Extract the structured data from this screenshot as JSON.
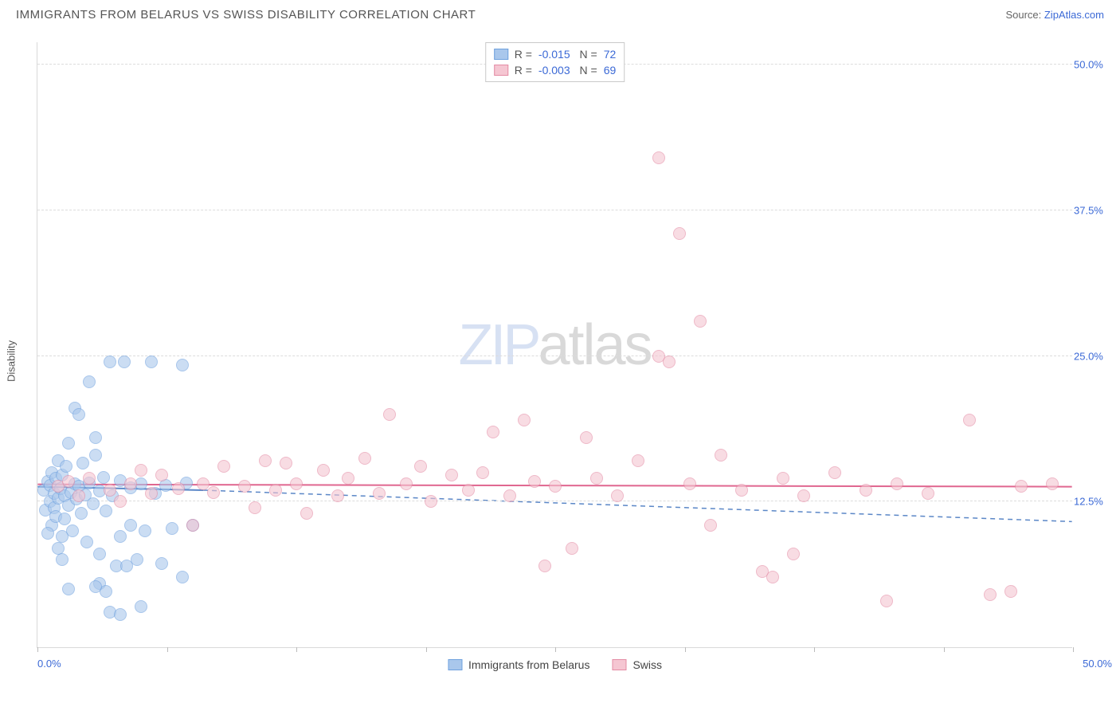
{
  "header": {
    "title": "IMMIGRANTS FROM BELARUS VS SWISS DISABILITY CORRELATION CHART",
    "source_prefix": "Source: ",
    "source_link": "ZipAtlas.com"
  },
  "chart": {
    "type": "scatter",
    "y_axis_label": "Disability",
    "xlim": [
      0,
      50
    ],
    "ylim": [
      0,
      52
    ],
    "x_ticks": [
      0,
      6.25,
      12.5,
      18.75,
      25,
      31.25,
      37.5,
      43.75,
      50
    ],
    "x_tick_labels": {
      "0": "0.0%",
      "50": "50.0%"
    },
    "y_gridlines": [
      12.5,
      25.0,
      37.5,
      50.0
    ],
    "y_tick_labels": {
      "12.5": "12.5%",
      "25.0": "25.0%",
      "37.5": "37.5%",
      "50.0": "50.0%"
    },
    "grid_color": "#dcdcdc",
    "axis_color": "#d9d9d9",
    "background_color": "#ffffff",
    "marker_radius": 8,
    "marker_opacity": 0.6,
    "watermark": {
      "part1": "ZIP",
      "part2": "atlas"
    },
    "series": [
      {
        "name": "Immigrants from Belarus",
        "fill": "#a9c7ec",
        "stroke": "#6fa1de",
        "R": "-0.015",
        "N": "72",
        "trend": {
          "y1": 13.8,
          "y2": 10.8,
          "x_end": 8,
          "dash": "6,5",
          "color": "#5b87c7",
          "width": 1.5
        },
        "trend_solid": {
          "y1": 13.8,
          "y2": 13.5,
          "x_end": 8,
          "color": "#5b87c7",
          "width": 2
        },
        "points": [
          [
            0.3,
            13.5
          ],
          [
            0.4,
            11.8
          ],
          [
            0.5,
            14.2
          ],
          [
            0.6,
            12.5
          ],
          [
            0.6,
            13.9
          ],
          [
            0.7,
            10.5
          ],
          [
            0.7,
            15.0
          ],
          [
            0.8,
            12.0
          ],
          [
            0.8,
            13.2
          ],
          [
            0.9,
            14.5
          ],
          [
            0.9,
            11.2
          ],
          [
            1.0,
            16.0
          ],
          [
            1.0,
            12.8
          ],
          [
            1.1,
            13.6
          ],
          [
            1.2,
            9.5
          ],
          [
            1.2,
            14.8
          ],
          [
            1.3,
            11.0
          ],
          [
            1.3,
            13.0
          ],
          [
            1.4,
            15.5
          ],
          [
            1.5,
            12.2
          ],
          [
            1.5,
            17.5
          ],
          [
            1.6,
            13.3
          ],
          [
            1.7,
            10.0
          ],
          [
            1.8,
            14.0
          ],
          [
            1.8,
            20.5
          ],
          [
            1.9,
            12.7
          ],
          [
            2.0,
            20.0
          ],
          [
            2.0,
            13.8
          ],
          [
            2.1,
            11.5
          ],
          [
            2.2,
            15.8
          ],
          [
            2.3,
            13.1
          ],
          [
            2.4,
            9.0
          ],
          [
            2.5,
            22.8
          ],
          [
            2.5,
            14.1
          ],
          [
            2.7,
            12.3
          ],
          [
            2.8,
            16.5
          ],
          [
            2.8,
            18.0
          ],
          [
            3.0,
            13.4
          ],
          [
            3.0,
            8.0
          ],
          [
            3.2,
            14.6
          ],
          [
            3.3,
            11.7
          ],
          [
            3.5,
            24.5
          ],
          [
            3.5,
            3.0
          ],
          [
            3.6,
            13.0
          ],
          [
            3.8,
            7.0
          ],
          [
            4.0,
            14.3
          ],
          [
            4.0,
            9.5
          ],
          [
            4.2,
            24.5
          ],
          [
            4.3,
            7.0
          ],
          [
            4.5,
            13.7
          ],
          [
            4.5,
            10.5
          ],
          [
            4.8,
            7.5
          ],
          [
            5.0,
            14.0
          ],
          [
            5.0,
            3.5
          ],
          [
            5.2,
            10.0
          ],
          [
            5.5,
            24.5
          ],
          [
            5.7,
            13.2
          ],
          [
            6.0,
            7.2
          ],
          [
            6.2,
            13.9
          ],
          [
            6.5,
            10.2
          ],
          [
            7.0,
            24.2
          ],
          [
            7.0,
            6.0
          ],
          [
            7.2,
            14.1
          ],
          [
            7.5,
            10.5
          ],
          [
            3.0,
            5.5
          ],
          [
            3.3,
            4.8
          ],
          [
            4.0,
            2.8
          ],
          [
            1.5,
            5.0
          ],
          [
            2.8,
            5.2
          ],
          [
            1.0,
            8.5
          ],
          [
            0.5,
            9.8
          ],
          [
            1.2,
            7.5
          ]
        ]
      },
      {
        "name": "Swiss",
        "fill": "#f5c6d2",
        "stroke": "#e48ca5",
        "R": "-0.003",
        "N": "69",
        "trend": {
          "y1": 14.0,
          "y2": 13.8,
          "x_end": 50,
          "dash": "",
          "color": "#e06790",
          "width": 2
        },
        "points": [
          [
            1.0,
            13.8
          ],
          [
            1.5,
            14.2
          ],
          [
            2.0,
            13.0
          ],
          [
            2.5,
            14.5
          ],
          [
            3.5,
            13.5
          ],
          [
            4.0,
            12.5
          ],
          [
            4.5,
            14.0
          ],
          [
            5.0,
            15.2
          ],
          [
            5.5,
            13.2
          ],
          [
            6.0,
            14.8
          ],
          [
            6.8,
            13.6
          ],
          [
            7.5,
            10.5
          ],
          [
            8.0,
            14.0
          ],
          [
            8.5,
            13.3
          ],
          [
            9.0,
            15.5
          ],
          [
            10.0,
            13.8
          ],
          [
            10.5,
            12.0
          ],
          [
            11.0,
            16.0
          ],
          [
            11.5,
            13.5
          ],
          [
            12.0,
            15.8
          ],
          [
            12.5,
            14.0
          ],
          [
            13.0,
            11.5
          ],
          [
            13.8,
            15.2
          ],
          [
            14.5,
            13.0
          ],
          [
            15.0,
            14.5
          ],
          [
            15.8,
            16.2
          ],
          [
            16.5,
            13.2
          ],
          [
            17.0,
            20.0
          ],
          [
            17.8,
            14.0
          ],
          [
            18.5,
            15.5
          ],
          [
            19.0,
            12.5
          ],
          [
            20.0,
            14.8
          ],
          [
            20.8,
            13.5
          ],
          [
            21.5,
            15.0
          ],
          [
            22.0,
            18.5
          ],
          [
            22.8,
            13.0
          ],
          [
            23.5,
            19.5
          ],
          [
            24.0,
            14.2
          ],
          [
            24.5,
            7.0
          ],
          [
            25.0,
            13.8
          ],
          [
            25.8,
            8.5
          ],
          [
            26.5,
            18.0
          ],
          [
            27.0,
            14.5
          ],
          [
            28.0,
            13.0
          ],
          [
            29.0,
            16.0
          ],
          [
            30.0,
            25.0
          ],
          [
            30.0,
            42.0
          ],
          [
            30.5,
            24.5
          ],
          [
            31.0,
            35.5
          ],
          [
            31.5,
            14.0
          ],
          [
            32.0,
            28.0
          ],
          [
            32.5,
            10.5
          ],
          [
            33.0,
            16.5
          ],
          [
            34.0,
            13.5
          ],
          [
            35.0,
            6.5
          ],
          [
            35.5,
            6.0
          ],
          [
            36.0,
            14.5
          ],
          [
            36.5,
            8.0
          ],
          [
            37.0,
            13.0
          ],
          [
            38.5,
            15.0
          ],
          [
            40.0,
            13.5
          ],
          [
            41.0,
            4.0
          ],
          [
            41.5,
            14.0
          ],
          [
            43.0,
            13.2
          ],
          [
            45.0,
            19.5
          ],
          [
            46.0,
            4.5
          ],
          [
            47.0,
            4.8
          ],
          [
            47.5,
            13.8
          ],
          [
            49.0,
            14.0
          ]
        ]
      }
    ],
    "legend_bottom": [
      {
        "label": "Immigrants from Belarus",
        "fill": "#a9c7ec",
        "stroke": "#6fa1de"
      },
      {
        "label": "Swiss",
        "fill": "#f5c6d2",
        "stroke": "#e48ca5"
      }
    ]
  }
}
